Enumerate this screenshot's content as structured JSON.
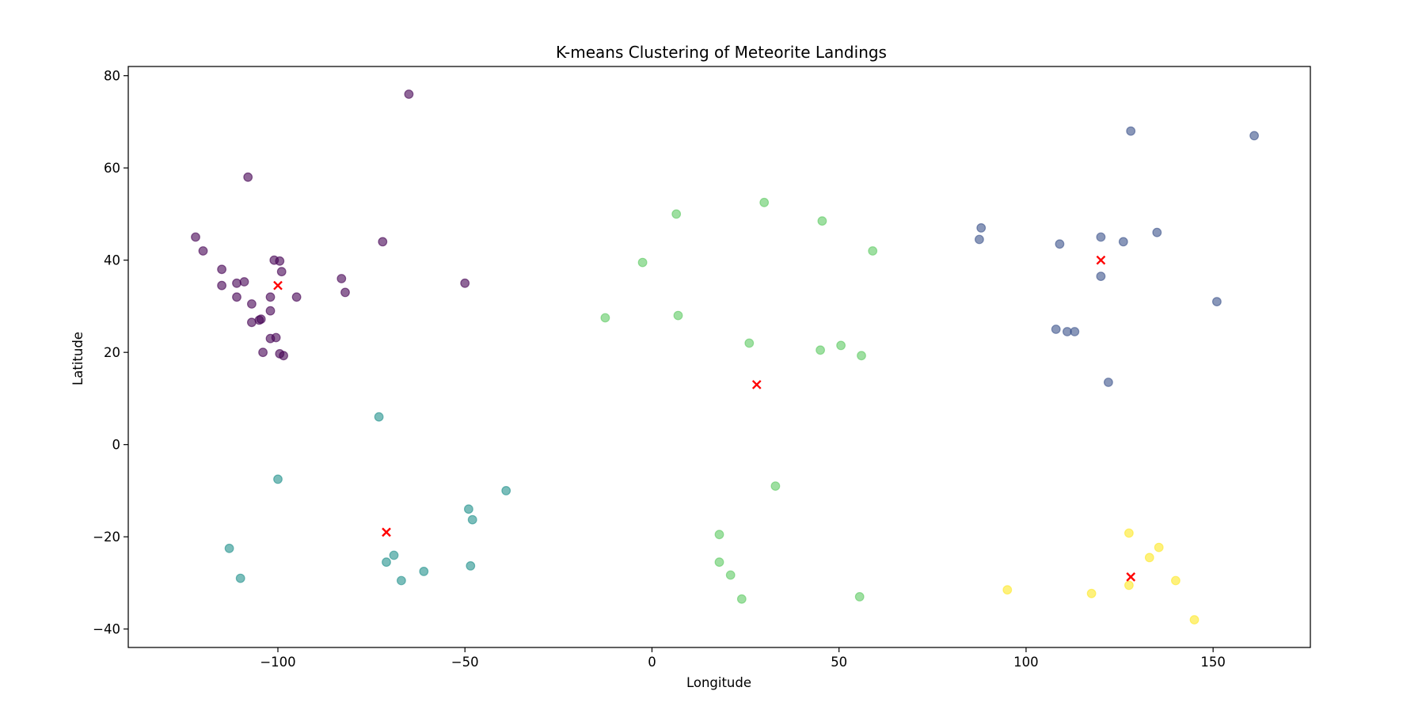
{
  "chart_data": {
    "type": "scatter",
    "title": "K-means Clustering of Meteorite Landings",
    "xlabel": "Longitude",
    "ylabel": "Latitude",
    "xlim": [
      -140,
      176
    ],
    "ylim": [
      -44,
      82
    ],
    "grid": false,
    "legend": "none",
    "x_ticks": [
      -100,
      -50,
      0,
      50,
      100,
      150
    ],
    "y_ticks": [
      -40,
      -20,
      0,
      20,
      40,
      60,
      80
    ],
    "x_tick_labels": [
      "−100",
      "−50",
      "0",
      "50",
      "100",
      "150"
    ],
    "y_tick_labels": [
      "−40",
      "−20",
      "0",
      "20",
      "40",
      "60",
      "80"
    ],
    "cluster_colors": [
      "#440154",
      "#3b528b",
      "#21918c",
      "#5ec962",
      "#fde725"
    ],
    "centroid_color": "#ff0000",
    "point_alpha": 0.6,
    "clusters": [
      {
        "points": [
          [
            -65,
            76
          ],
          [
            -108,
            58
          ],
          [
            -122,
            45
          ],
          [
            -120,
            42
          ],
          [
            -115,
            38
          ],
          [
            -115,
            34.5
          ],
          [
            -111,
            35
          ],
          [
            -109,
            35.3
          ],
          [
            -111,
            32
          ],
          [
            -102,
            32
          ],
          [
            -107,
            30.5
          ],
          [
            -102,
            29
          ],
          [
            -107,
            26.5
          ],
          [
            -105,
            27
          ],
          [
            -104.5,
            27.2
          ],
          [
            -102,
            23
          ],
          [
            -100.5,
            23.2
          ],
          [
            -104,
            20
          ],
          [
            -99.5,
            19.7
          ],
          [
            -98.5,
            19.3
          ],
          [
            -101,
            40
          ],
          [
            -99.5,
            39.8
          ],
          [
            -99,
            37.5
          ],
          [
            -95,
            32
          ],
          [
            -83,
            36
          ],
          [
            -82,
            33
          ],
          [
            -72,
            44
          ],
          [
            -50,
            35
          ]
        ]
      },
      {
        "points": [
          [
            128,
            68
          ],
          [
            161,
            67
          ],
          [
            88,
            47
          ],
          [
            87.5,
            44.5
          ],
          [
            109,
            43.5
          ],
          [
            120,
            45
          ],
          [
            126,
            44
          ],
          [
            135,
            46
          ],
          [
            120,
            36.5
          ],
          [
            151,
            31
          ],
          [
            108,
            25
          ],
          [
            111,
            24.5
          ],
          [
            113,
            24.5
          ],
          [
            122,
            13.5
          ]
        ]
      },
      {
        "points": [
          [
            -73,
            6
          ],
          [
            -100,
            -7.5
          ],
          [
            -39,
            -10
          ],
          [
            -49,
            -14
          ],
          [
            -48,
            -16.3
          ],
          [
            -113,
            -22.5
          ],
          [
            -110,
            -29
          ],
          [
            -69,
            -24
          ],
          [
            -71,
            -25.5
          ],
          [
            -61,
            -27.5
          ],
          [
            -48.5,
            -26.3
          ],
          [
            -67,
            -29.5
          ]
        ]
      },
      {
        "points": [
          [
            30,
            52.5
          ],
          [
            6.5,
            50
          ],
          [
            45.5,
            48.5
          ],
          [
            59,
            42
          ],
          [
            -2.5,
            39.5
          ],
          [
            -12.5,
            27.5
          ],
          [
            7,
            28
          ],
          [
            26,
            22
          ],
          [
            45,
            20.5
          ],
          [
            50.5,
            21.5
          ],
          [
            56,
            19.3
          ],
          [
            33,
            -9
          ],
          [
            18,
            -19.5
          ],
          [
            18,
            -25.5
          ],
          [
            21,
            -28.3
          ],
          [
            24,
            -33.5
          ],
          [
            55.5,
            -33
          ]
        ]
      },
      {
        "points": [
          [
            127.5,
            -19.2
          ],
          [
            135.5,
            -22.3
          ],
          [
            133,
            -24.5
          ],
          [
            127.5,
            -30.5
          ],
          [
            140,
            -29.5
          ],
          [
            95,
            -31.5
          ],
          [
            117.5,
            -32.3
          ],
          [
            145,
            -38
          ]
        ]
      }
    ],
    "centroids": [
      [
        -100,
        34.5
      ],
      [
        120,
        40
      ],
      [
        -71,
        -19
      ],
      [
        28,
        13
      ],
      [
        128,
        -28.7
      ]
    ]
  }
}
